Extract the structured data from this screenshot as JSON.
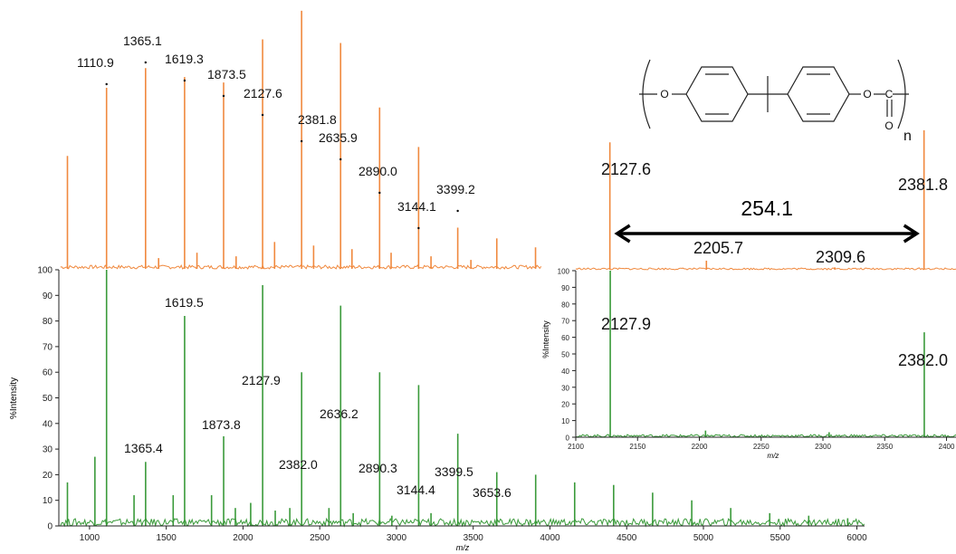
{
  "colors": {
    "orange": "#f0893e",
    "green": "#3a9a3a",
    "axis": "#222222",
    "text": "#111111"
  },
  "chart_data": [
    {
      "type": "line",
      "panel": "main",
      "ylabel": "%Intensity",
      "xlabel": "m/z",
      "xlim": [
        800,
        6050
      ],
      "ylim": [
        0,
        100
      ],
      "x_ticks": [
        1000,
        1500,
        2000,
        2500,
        3000,
        3500,
        4000,
        4500,
        5000,
        5500,
        6000
      ],
      "y_ticks": [
        0,
        10,
        20,
        30,
        40,
        50,
        60,
        70,
        80,
        90,
        100
      ],
      "series": [
        {
          "color": "orange",
          "peaks": [
            {
              "x": 856,
              "y": 63
            },
            {
              "x": 1110.9,
              "y": 101
            },
            {
              "x": 1365.1,
              "y": 112
            },
            {
              "x": 1619.3,
              "y": 107
            },
            {
              "x": 1873.5,
              "y": 104
            },
            {
              "x": 2127.6,
              "y": 128
            },
            {
              "x": 2381.8,
              "y": 144
            },
            {
              "x": 2635.9,
              "y": 126
            },
            {
              "x": 2890.0,
              "y": 90
            },
            {
              "x": 3144.1,
              "y": 68
            },
            {
              "x": 3399.2,
              "y": 23
            },
            {
              "x": 3653.6,
              "y": 17
            },
            {
              "x": 3906,
              "y": 12
            },
            {
              "x": 1450,
              "y": 6
            },
            {
              "x": 1700,
              "y": 9
            },
            {
              "x": 1955,
              "y": 7
            },
            {
              "x": 2205.7,
              "y": 15
            },
            {
              "x": 2460,
              "y": 13
            },
            {
              "x": 2710,
              "y": 11
            },
            {
              "x": 2965,
              "y": 9
            },
            {
              "x": 3225,
              "y": 7
            },
            {
              "x": 3485,
              "y": 5
            }
          ],
          "labels": [
            {
              "x": 1110.9,
              "text": "1110.9"
            },
            {
              "x": 1365.1,
              "text": "1365.1"
            },
            {
              "x": 1619.3,
              "text": "1619.3"
            },
            {
              "x": 1873.5,
              "text": "1873.5"
            },
            {
              "x": 2127.6,
              "text": "2127.6"
            },
            {
              "x": 2381.8,
              "text": "2381.8"
            },
            {
              "x": 2635.9,
              "text": "2635.9"
            },
            {
              "x": 2890.0,
              "text": "2890.0"
            },
            {
              "x": 3144.1,
              "text": "3144.1"
            },
            {
              "x": 3399.2,
              "text": "3399.2"
            }
          ]
        },
        {
          "color": "green",
          "peaks": [
            {
              "x": 856,
              "y": 17
            },
            {
              "x": 1035,
              "y": 27
            },
            {
              "x": 1110.9,
              "y": 100
            },
            {
              "x": 1290,
              "y": 12
            },
            {
              "x": 1365.4,
              "y": 25
            },
            {
              "x": 1545,
              "y": 12
            },
            {
              "x": 1619.5,
              "y": 82
            },
            {
              "x": 1795,
              "y": 12
            },
            {
              "x": 1873.8,
              "y": 35
            },
            {
              "x": 2050,
              "y": 9
            },
            {
              "x": 2127.9,
              "y": 94
            },
            {
              "x": 2305,
              "y": 7
            },
            {
              "x": 2382.0,
              "y": 60
            },
            {
              "x": 2560,
              "y": 7
            },
            {
              "x": 2636.2,
              "y": 86
            },
            {
              "x": 2890.3,
              "y": 60
            },
            {
              "x": 3144.4,
              "y": 55
            },
            {
              "x": 3399.5,
              "y": 36
            },
            {
              "x": 3653.6,
              "y": 21
            },
            {
              "x": 3907,
              "y": 20
            },
            {
              "x": 4161,
              "y": 17
            },
            {
              "x": 4415,
              "y": 16
            },
            {
              "x": 4669,
              "y": 13
            },
            {
              "x": 4924,
              "y": 10
            },
            {
              "x": 5178,
              "y": 7
            },
            {
              "x": 5432,
              "y": 5
            },
            {
              "x": 5686,
              "y": 4
            },
            {
              "x": 5940,
              "y": 3
            },
            {
              "x": 1950,
              "y": 7
            },
            {
              "x": 2210,
              "y": 6
            },
            {
              "x": 2718,
              "y": 5
            },
            {
              "x": 2970,
              "y": 4
            },
            {
              "x": 3225,
              "y": 5
            }
          ],
          "labels": [
            {
              "x": 1365.4,
              "text": "1365.4"
            },
            {
              "x": 1619.5,
              "text": "1619.5"
            },
            {
              "x": 1873.8,
              "text": "1873.8"
            },
            {
              "x": 2127.9,
              "text": "2127.9"
            },
            {
              "x": 2382.0,
              "text": "2382.0"
            },
            {
              "x": 2636.2,
              "text": "2636.2"
            },
            {
              "x": 2890.3,
              "text": "2890.3"
            },
            {
              "x": 3144.4,
              "text": "3144.4"
            },
            {
              "x": 3399.5,
              "text": "3399.5"
            },
            {
              "x": 3653.6,
              "text": "3653.6"
            }
          ]
        }
      ]
    },
    {
      "type": "line",
      "panel": "inset",
      "ylabel": "%Intensity",
      "xlabel": "m/z",
      "xlim": [
        2100,
        2415
      ],
      "ylim": [
        0,
        100
      ],
      "x_ticks": [
        2100,
        2150,
        2200,
        2250,
        2300,
        2350,
        2400
      ],
      "y_ticks": [
        0,
        10,
        20,
        30,
        40,
        50,
        60,
        70,
        80,
        90,
        100
      ],
      "series": [
        {
          "color": "orange",
          "peaks": [
            {
              "x": 2127.6,
              "y": 210
            },
            {
              "x": 2205.7,
              "y": 15
            },
            {
              "x": 2309.6,
              "y": 4
            },
            {
              "x": 2381.8,
              "y": 230
            }
          ],
          "labels": [
            {
              "x": 2127.6,
              "text": "2127.6"
            },
            {
              "x": 2205.7,
              "text": "2205.7"
            },
            {
              "x": 2309.6,
              "text": "2309.6"
            },
            {
              "x": 2381.8,
              "text": "2381.8"
            }
          ]
        },
        {
          "color": "green",
          "peaks": [
            {
              "x": 2127.9,
              "y": 100
            },
            {
              "x": 2205,
              "y": 4
            },
            {
              "x": 2305,
              "y": 3
            },
            {
              "x": 2382.0,
              "y": 63
            }
          ],
          "labels": [
            {
              "x": 2127.9,
              "text": "2127.9"
            },
            {
              "x": 2382.0,
              "text": "2382.0"
            }
          ]
        }
      ],
      "annotation": {
        "text": "254.1",
        "from": 2127.6,
        "to": 2381.8
      }
    }
  ],
  "structure": {
    "atom_o": "O",
    "atom_c": "C",
    "repeat": "n"
  }
}
